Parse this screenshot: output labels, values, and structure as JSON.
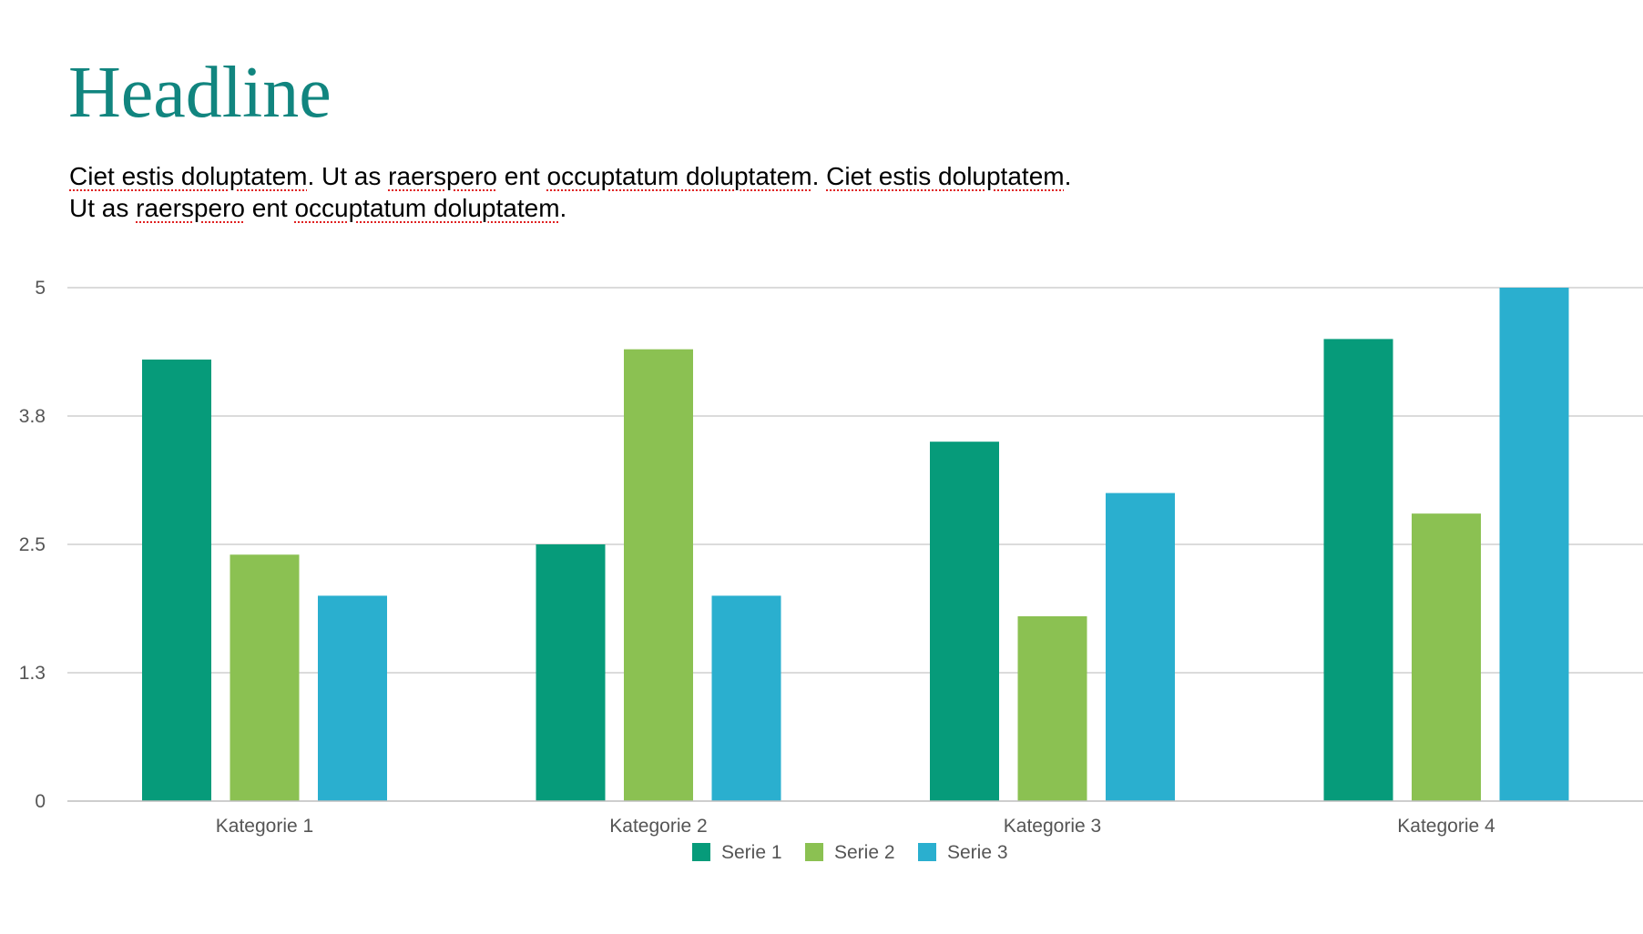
{
  "slide": {
    "headline": "Headline",
    "body_lines": [
      [
        {
          "text": "Ciet estis doluptatem",
          "spell": true
        },
        {
          "text": ". Ut as ",
          "spell": false
        },
        {
          "text": "raerspero",
          "spell": true
        },
        {
          "text": " ent ",
          "spell": false
        },
        {
          "text": "occuptatum doluptatem",
          "spell": true
        },
        {
          "text": ". ",
          "spell": false
        },
        {
          "text": "Ciet estis doluptatem",
          "spell": true
        },
        {
          "text": ".",
          "spell": false
        }
      ],
      [
        {
          "text": "Ut as ",
          "spell": false
        },
        {
          "text": "raerspero",
          "spell": true
        },
        {
          "text": " ent ",
          "spell": false
        },
        {
          "text": "occuptatum doluptatem",
          "spell": true
        },
        {
          "text": ".",
          "spell": false
        }
      ]
    ]
  },
  "colors": {
    "headline": "#11857f",
    "grid": "#cfcfcf",
    "axis_line": "#bdbdbd",
    "spellcheck": "#e02020"
  },
  "chart_data": {
    "type": "bar",
    "title": "",
    "xlabel": "",
    "ylabel": "",
    "categories": [
      "Kategorie 1",
      "Kategorie 2",
      "Kategorie 3",
      "Kategorie 4"
    ],
    "series": [
      {
        "name": "Serie 1",
        "color": "#069b7a",
        "values": [
          4.3,
          2.5,
          3.5,
          4.5
        ]
      },
      {
        "name": "Serie 2",
        "color": "#8bc152",
        "values": [
          2.4,
          4.4,
          1.8,
          2.8
        ]
      },
      {
        "name": "Serie 3",
        "color": "#2aafcf",
        "values": [
          2.0,
          2.0,
          3.0,
          5.0
        ]
      }
    ],
    "y_ticks": [
      0,
      1.25,
      2.5,
      3.75,
      5
    ],
    "y_tick_labels": [
      "0",
      "1.3",
      "2.5",
      "3.8",
      "5"
    ],
    "ylim": [
      0,
      5
    ],
    "grid": true,
    "legend_position": "bottom-center"
  }
}
